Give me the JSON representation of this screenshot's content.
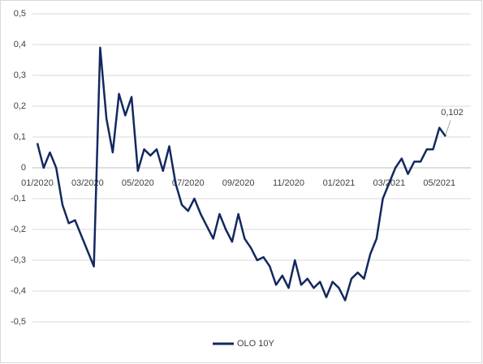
{
  "chart_data": {
    "type": "line",
    "categories": [
      "01/2020",
      null,
      null,
      null,
      null,
      null,
      null,
      null,
      "03/2020",
      null,
      null,
      null,
      null,
      null,
      null,
      null,
      "05/2020",
      null,
      null,
      null,
      null,
      null,
      null,
      null,
      "07/2020",
      null,
      null,
      null,
      null,
      null,
      null,
      null,
      "09/2020",
      null,
      null,
      null,
      null,
      null,
      null,
      null,
      "11/2020",
      null,
      null,
      null,
      null,
      null,
      null,
      null,
      "01/2021",
      null,
      null,
      null,
      null,
      null,
      null,
      null,
      "03/2021",
      null,
      null,
      null,
      null,
      null,
      null,
      null,
      "05/2021",
      null
    ],
    "series": [
      {
        "name": "OLO 10Y",
        "color": "#13285f",
        "values": [
          0.08,
          0.0,
          0.05,
          0.0,
          -0.12,
          -0.18,
          -0.17,
          -0.22,
          -0.27,
          -0.32,
          0.39,
          0.16,
          0.05,
          0.24,
          0.17,
          0.23,
          -0.01,
          0.06,
          0.04,
          0.06,
          -0.01,
          0.07,
          -0.05,
          -0.12,
          -0.14,
          -0.1,
          -0.15,
          -0.19,
          -0.23,
          -0.15,
          -0.2,
          -0.24,
          -0.15,
          -0.23,
          -0.26,
          -0.3,
          -0.29,
          -0.32,
          -0.38,
          -0.35,
          -0.39,
          -0.3,
          -0.38,
          -0.36,
          -0.39,
          -0.37,
          -0.42,
          -0.37,
          -0.39,
          -0.43,
          -0.36,
          -0.34,
          -0.36,
          -0.28,
          -0.23,
          -0.1,
          -0.05,
          0.0,
          0.03,
          -0.02,
          0.02,
          0.02,
          0.06,
          0.06,
          0.13,
          0.102
        ],
        "value_labels": [
          null,
          null,
          null,
          null,
          null,
          null,
          null,
          null,
          null,
          null,
          null,
          null,
          null,
          null,
          null,
          null,
          null,
          null,
          null,
          null,
          null,
          null,
          null,
          null,
          null,
          null,
          null,
          null,
          null,
          null,
          null,
          null,
          null,
          null,
          null,
          null,
          null,
          null,
          null,
          null,
          null,
          null,
          null,
          null,
          null,
          null,
          null,
          null,
          null,
          null,
          null,
          null,
          null,
          null,
          null,
          null,
          null,
          null,
          null,
          null,
          null,
          null,
          null,
          null,
          null,
          "0,102"
        ]
      }
    ],
    "ylim": [
      -0.5,
      0.5
    ],
    "yticks": [
      {
        "value": 0.5,
        "label": "0,5"
      },
      {
        "value": 0.4,
        "label": "0,4"
      },
      {
        "value": 0.3,
        "label": "0,3"
      },
      {
        "value": 0.2,
        "label": "0,2"
      },
      {
        "value": 0.1,
        "label": "0,1"
      },
      0,
      {
        "value": -0.1,
        "label": "-0,1"
      },
      {
        "value": -0.2,
        "label": "-0,2"
      },
      {
        "value": -0.3,
        "label": "-0,3"
      },
      {
        "value": -0.4,
        "label": "-0,4"
      },
      {
        "value": -0.5,
        "label": "-0,5"
      }
    ],
    "grid": true,
    "legend": "bottom"
  }
}
